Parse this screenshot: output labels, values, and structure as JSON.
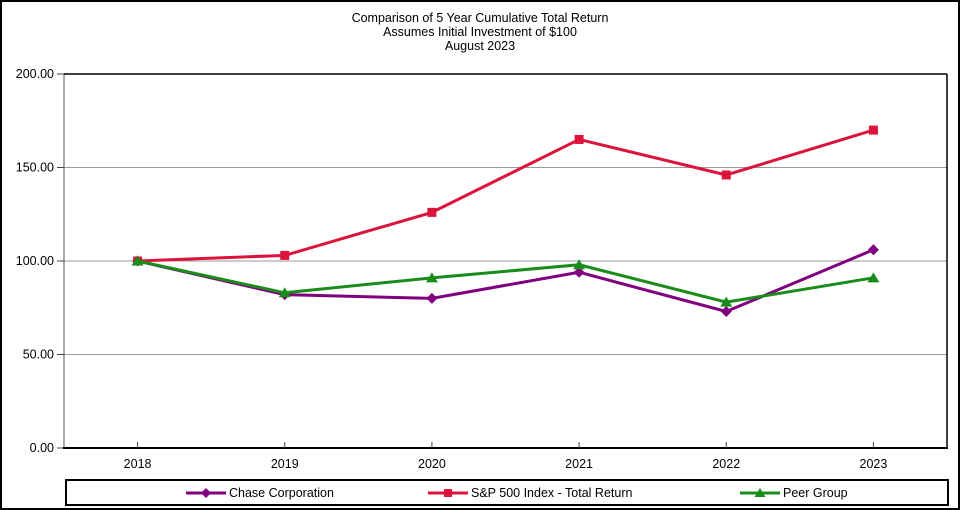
{
  "window": {
    "background": "#ffffff",
    "border_color": "#000000"
  },
  "title": {
    "line1": "Comparison of 5 Year Cumulative Total Return",
    "line2": "Assumes Initial Investment of $100",
    "line3": "August 2023"
  },
  "chart_data": {
    "type": "line",
    "title": "Comparison of 5 Year Cumulative Total Return",
    "subtitle": "Assumes Initial Investment of $100",
    "date_label": "August 2023",
    "categories": [
      "2018",
      "2019",
      "2020",
      "2021",
      "2022",
      "2023"
    ],
    "series": [
      {
        "name": "Chase Corporation",
        "marker": "diamond",
        "color": "#800080",
        "values": [
          100,
          82,
          80,
          94,
          73,
          106
        ]
      },
      {
        "name": "S&P 500 Index - Total Return",
        "marker": "square",
        "color": "#DC143C",
        "values": [
          100,
          103,
          126,
          165,
          146,
          170
        ]
      },
      {
        "name": "Peer Group",
        "marker": "triangle",
        "color": "#1A8C1A",
        "values": [
          100,
          83,
          91,
          98,
          78,
          91
        ]
      }
    ],
    "xlabel": "",
    "ylabel": "",
    "ylim": [
      0,
      200
    ],
    "ytick_step": 50,
    "ytick_labels": [
      "0.00",
      "50.00",
      "100.00",
      "150.00",
      "200.00"
    ],
    "grid": true,
    "gridline_color": "#9a9a9a",
    "axis_color": "#000000",
    "legend_position": "bottom"
  }
}
